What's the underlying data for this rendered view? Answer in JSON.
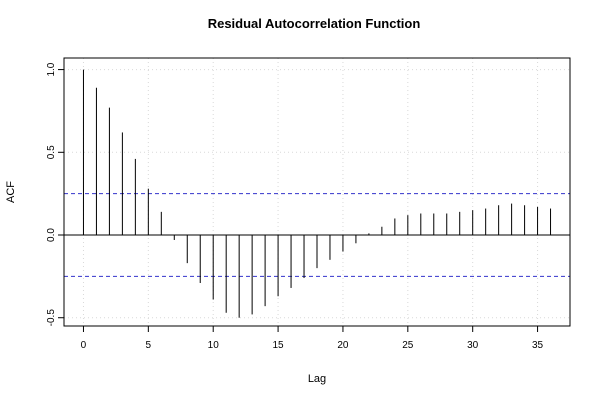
{
  "chart_data": {
    "type": "bar",
    "title": "Residual Autocorrelation Function",
    "xlabel": "Lag",
    "ylabel": "ACF",
    "xlim": [
      -1.5,
      37.5
    ],
    "ylim": [
      -0.55,
      1.07
    ],
    "x_ticks": [
      0,
      5,
      10,
      15,
      20,
      25,
      30,
      35
    ],
    "y_ticks": [
      -0.5,
      0.0,
      0.5,
      1.0
    ],
    "y_tick_labels": [
      "-0.5",
      "0.0",
      "0.5",
      "1.0"
    ],
    "grid": true,
    "confidence_bounds": [
      0.25,
      -0.25
    ],
    "lags": [
      0,
      1,
      2,
      3,
      4,
      5,
      6,
      7,
      8,
      9,
      10,
      11,
      12,
      13,
      14,
      15,
      16,
      17,
      18,
      19,
      20,
      21,
      22,
      23,
      24,
      25,
      26,
      27,
      28,
      29,
      30,
      31,
      32,
      33,
      34,
      35,
      36
    ],
    "values": [
      1.0,
      0.89,
      0.77,
      0.62,
      0.46,
      0.28,
      0.14,
      -0.03,
      -0.17,
      -0.29,
      -0.39,
      -0.47,
      -0.5,
      -0.48,
      -0.43,
      -0.37,
      -0.32,
      -0.26,
      -0.2,
      -0.15,
      -0.1,
      -0.05,
      0.01,
      0.05,
      0.1,
      0.12,
      0.13,
      0.13,
      0.13,
      0.14,
      0.15,
      0.16,
      0.18,
      0.19,
      0.18,
      0.17,
      0.16
    ]
  },
  "colors": {
    "bars": "#000000",
    "confidence": "#3333cc",
    "grid": "#d9d9d9",
    "frame": "#000000"
  }
}
